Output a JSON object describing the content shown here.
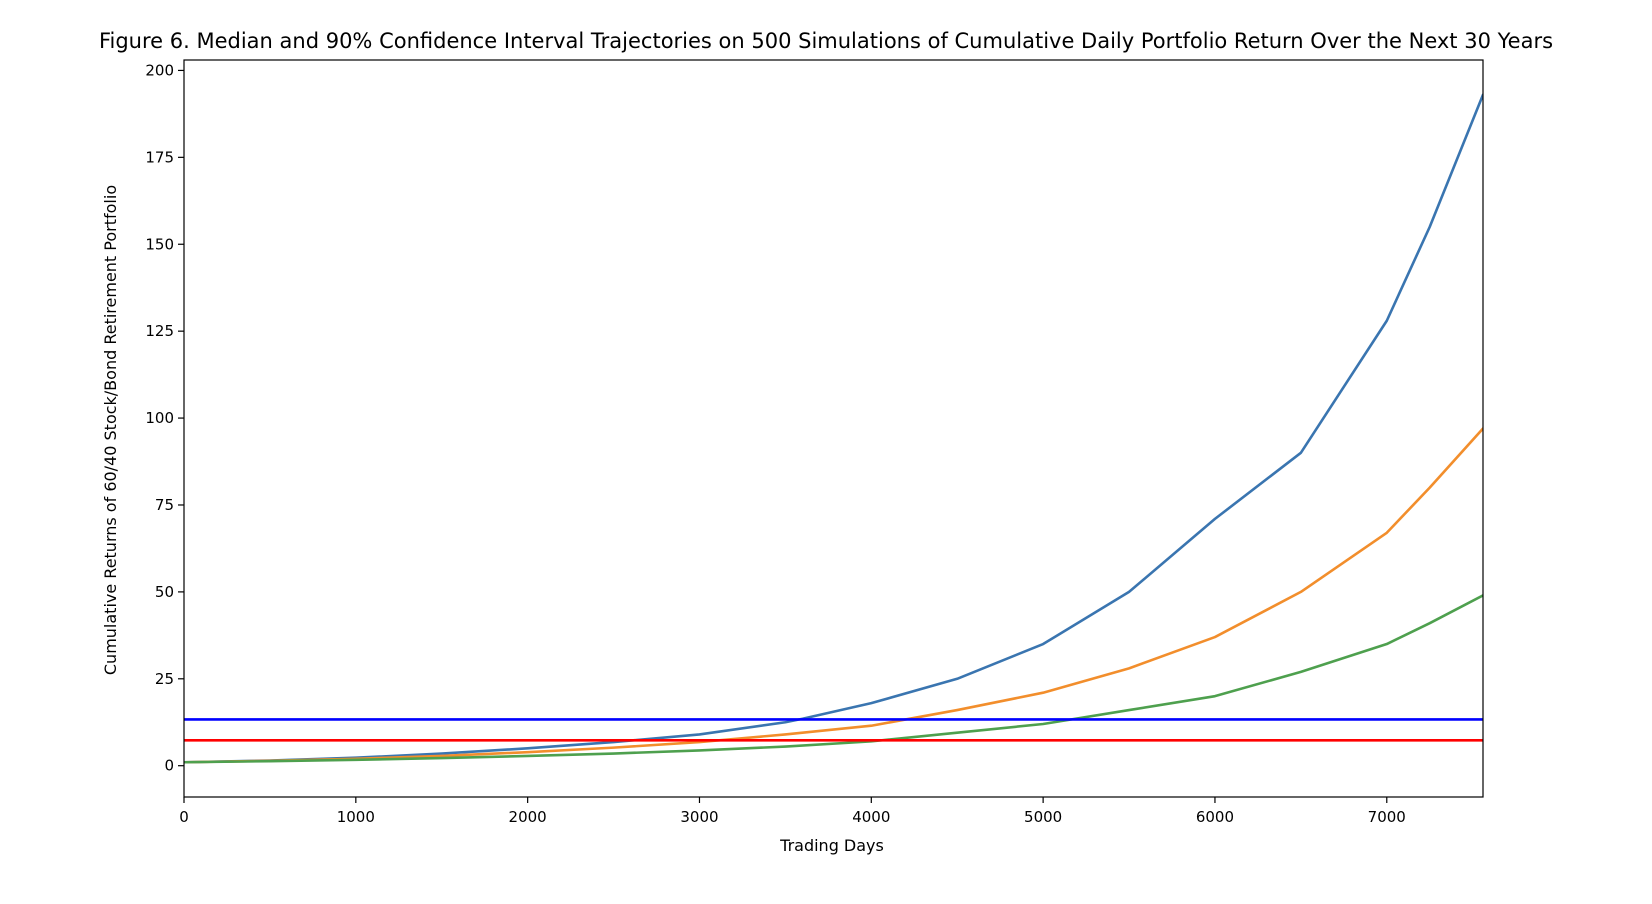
{
  "chart_data": {
    "type": "line",
    "title": "Figure 6. Median and 90% Confidence Interval Trajectories on 500 Simulations of Cumulative Daily Portfolio Return Over the Next 30 Years",
    "xlabel": "Trading Days",
    "ylabel": "Cumulative Returns of 60/40 Stock/Bond Retirement Portfolio",
    "xlim": [
      0,
      7560
    ],
    "ylim": [
      -9,
      203
    ],
    "grid": false,
    "x_ticks": [
      0,
      1000,
      2000,
      3000,
      4000,
      5000,
      6000,
      7000
    ],
    "y_ticks": [
      0,
      25,
      50,
      75,
      100,
      125,
      150,
      175,
      200
    ],
    "series": [
      {
        "color": "#3a75b0",
        "x": [
          0,
          500,
          1000,
          1500,
          2000,
          2500,
          3000,
          3500,
          3600,
          4000,
          4500,
          5000,
          5500,
          6000,
          6500,
          7000,
          7250,
          7560
        ],
        "values": [
          1,
          1.5,
          2.3,
          3.5,
          5,
          6.8,
          9,
          12.5,
          13.5,
          18,
          25,
          35,
          50,
          71,
          90,
          128,
          155,
          193
        ]
      },
      {
        "color": "#f28e2c",
        "x": [
          0,
          500,
          1000,
          1500,
          2000,
          2500,
          3000,
          3500,
          4000,
          4500,
          5000,
          5500,
          6000,
          6500,
          7000,
          7250,
          7560
        ],
        "values": [
          1,
          1.4,
          2,
          2.8,
          3.9,
          5.2,
          6.8,
          9,
          11.5,
          16,
          21,
          28,
          37,
          50,
          67,
          80,
          97
        ]
      },
      {
        "color": "#4ea04e",
        "x": [
          0,
          500,
          1000,
          1500,
          2000,
          2500,
          3000,
          3500,
          4000,
          4500,
          5000,
          5500,
          6000,
          6500,
          7000,
          7250,
          7560
        ],
        "values": [
          1,
          1.3,
          1.7,
          2.2,
          2.8,
          3.5,
          4.4,
          5.5,
          7,
          9.5,
          12,
          16,
          20,
          27,
          35,
          41,
          49
        ]
      }
    ],
    "hlines": [
      {
        "value": 13.3,
        "color": "#0000ff"
      },
      {
        "value": 7.3,
        "color": "#ff0000"
      }
    ]
  }
}
